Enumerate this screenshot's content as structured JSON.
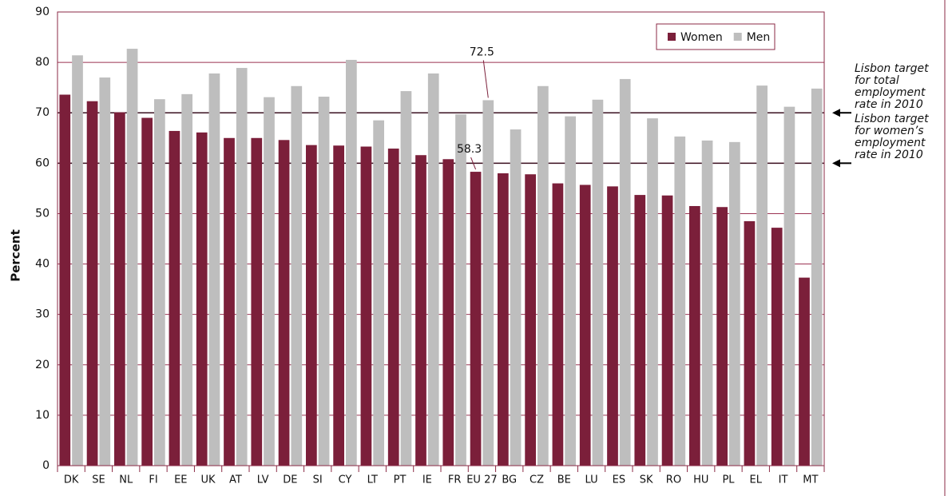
{
  "chart_data": {
    "type": "bar",
    "y_label": "Percent",
    "categories": [
      "DK",
      "SE",
      "NL",
      "FI",
      "EE",
      "UK",
      "AT",
      "LV",
      "DE",
      "SI",
      "CY",
      "LT",
      "PT",
      "IE",
      "FR",
      "EU 27",
      "BG",
      "CZ",
      "BE",
      "LU",
      "ES",
      "SK",
      "RO",
      "HU",
      "PL",
      "EL",
      "IT",
      "MT"
    ],
    "series": [
      {
        "name": "Women",
        "color": "#7b1f3a",
        "values": [
          73.6,
          72.3,
          70.1,
          69.0,
          66.4,
          66.1,
          65.0,
          65.0,
          64.6,
          63.6,
          63.5,
          63.3,
          62.9,
          61.6,
          60.8,
          58.3,
          58.0,
          57.8,
          56.0,
          55.7,
          55.4,
          53.7,
          53.6,
          51.5,
          51.3,
          48.5,
          47.2,
          37.3
        ],
        "value_labels": [
          null,
          null,
          null,
          null,
          null,
          null,
          null,
          null,
          null,
          null,
          null,
          null,
          null,
          null,
          null,
          "58.3",
          null,
          null,
          null,
          null,
          null,
          null,
          null,
          null,
          null,
          null,
          null,
          null
        ]
      },
      {
        "name": "Men",
        "color": "#bebebe",
        "values": [
          81.4,
          77.0,
          82.7,
          72.7,
          73.7,
          77.8,
          78.9,
          73.1,
          75.3,
          73.2,
          80.5,
          68.5,
          74.3,
          77.8,
          69.7,
          72.5,
          66.7,
          75.3,
          69.3,
          72.6,
          76.7,
          68.9,
          65.3,
          64.5,
          64.2,
          75.4,
          71.2,
          74.8
        ],
        "value_labels": [
          null,
          null,
          null,
          null,
          null,
          null,
          null,
          null,
          null,
          null,
          null,
          null,
          null,
          null,
          null,
          "72.5",
          null,
          null,
          null,
          null,
          null,
          null,
          null,
          null,
          null,
          null,
          null,
          null
        ]
      }
    ],
    "ylim": [
      0,
      90
    ],
    "yticks": [
      0,
      10,
      20,
      30,
      40,
      50,
      60,
      70,
      80,
      90
    ],
    "grid": true,
    "legend": "upper right",
    "annotations": [
      {
        "text": "Lisbon target for total employment rate in 2010",
        "value": 70
      },
      {
        "text": "Lisbon target for women’s employment rate in 2010",
        "value": 60
      }
    ]
  }
}
